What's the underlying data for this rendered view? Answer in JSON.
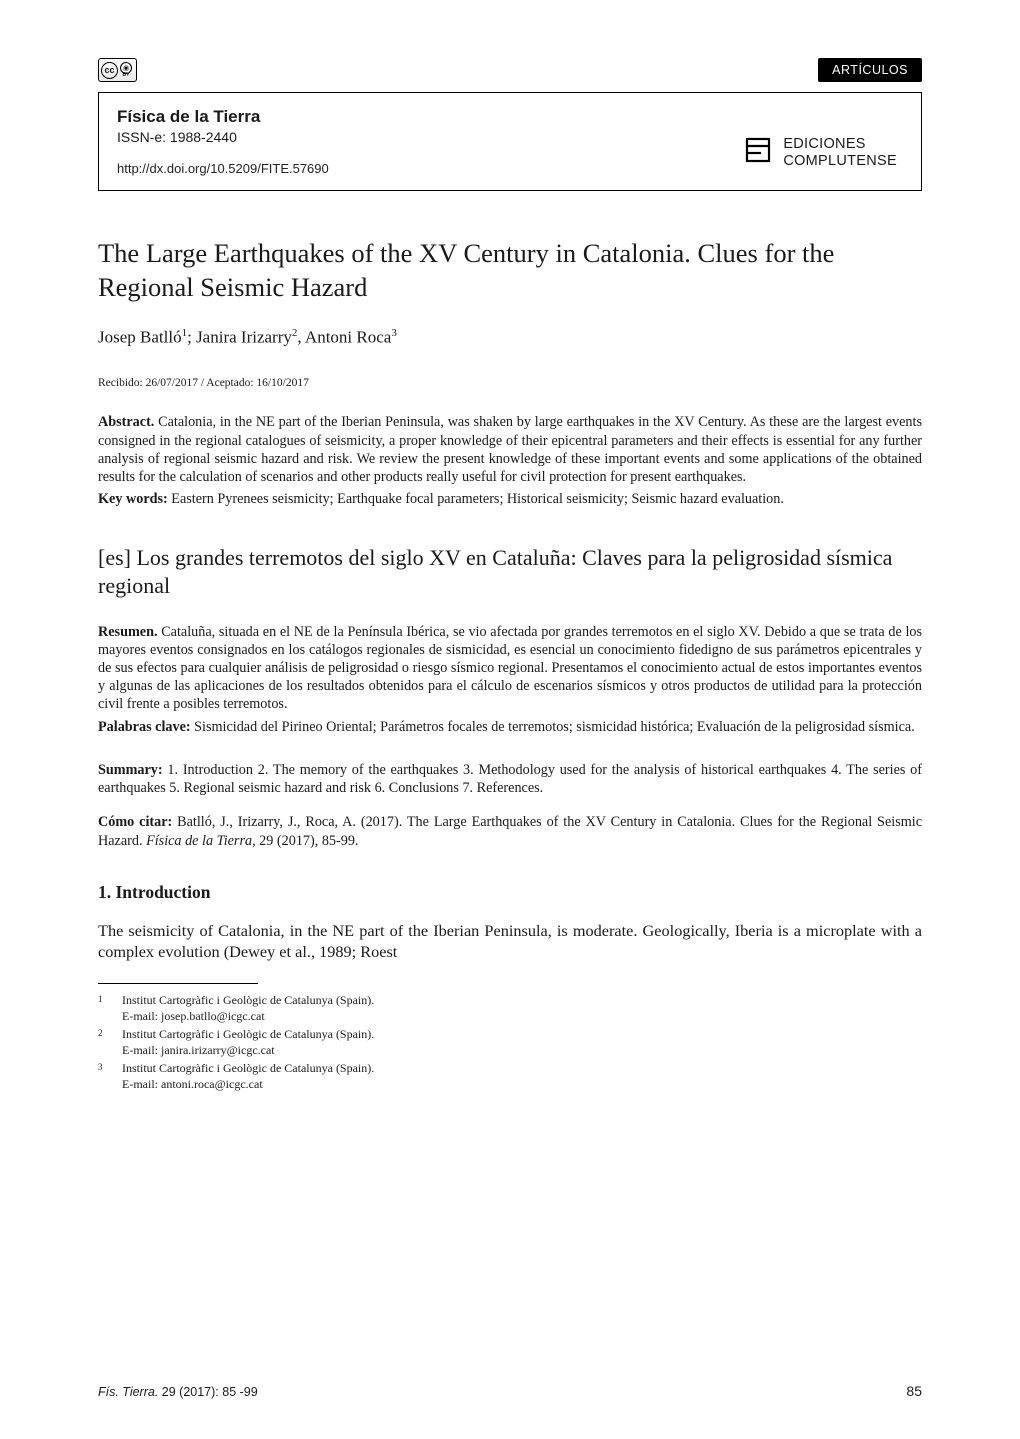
{
  "colors": {
    "text": "#1a1a1a",
    "background": "#ffffff",
    "pill_bg": "#000000",
    "pill_fg": "#ffffff",
    "rule": "#000000"
  },
  "typography": {
    "body_family": "Georgia, 'Times New Roman', serif",
    "sans_family": "Arial, Helvetica, sans-serif",
    "title_size_pt": 20,
    "subtitle_size_pt": 16.5,
    "body_size_pt": 12,
    "abs_size_pt": 10.6,
    "footnote_size_pt": 9
  },
  "top": {
    "cc": "cc",
    "cc_by": "BY",
    "section_label": "ARTÍCULOS"
  },
  "header": {
    "journal": "Física de la Tierra",
    "issn": "ISSN-e: 1988-2440",
    "doi": "http://dx.doi.org/10.5209/FITE.57690",
    "publisher_line1": "EDICIONES",
    "publisher_line2": "COMPLUTENSE"
  },
  "title": "The Large Earthquakes of the XV Century in Catalonia. Clues for the Regional Seismic Hazard",
  "authors_html": "Josep Batlló<sup>1</sup>; Janira Irizarry<sup>2</sup>, Antoni Roca<sup>3</sup>",
  "dates": "Recibido: 26/07/2017 / Aceptado: 16/10/2017",
  "abstract": {
    "lead": "Abstract.",
    "text": " Catalonia, in the NE part of the Iberian Peninsula, was shaken by large earthquakes in the XV Century. As these are the largest events consigned in the regional catalogues of seismicity, a proper knowledge of their epicentral parameters and their effects is essential for any further analysis of regional seismic hazard and risk. We review the present knowledge of these important events and some applications of the obtained results for the calculation of scenarios and other products really useful for civil protection for present earthquakes."
  },
  "keywords": {
    "lead": "Key words:",
    "text": " Eastern Pyrenees seismicity; Earthquake focal parameters; Historical seismicity; Seismic hazard evaluation."
  },
  "es_title": "[es] Los grandes terremotos del siglo XV en Cataluña: Claves para la peligrosidad sísmica regional",
  "resumen": {
    "lead": "Resumen.",
    "text": " Cataluña, situada en el NE de la Península Ibérica, se vio afectada por grandes terremotos en el siglo XV. Debido a que se trata de los mayores eventos consignados en los catálogos regionales de sismicidad, es esencial un conocimiento fidedigno de sus parámetros epicentrales y de sus efectos para cualquier análisis de peligrosidad o riesgo sísmico regional. Presentamos el conocimiento actual de estos importantes eventos y algunas de las aplicaciones de los resultados obtenidos para el cálculo de escenarios sísmicos y otros productos de utilidad para la protección civil frente a posibles terremotos."
  },
  "palabras": {
    "lead": "Palabras clave:",
    "text": " Sismicidad del Pirineo Oriental; Parámetros focales de terremotos; sismicidad histórica; Evaluación de la peligrosidad sísmica."
  },
  "summary": {
    "lead": "Summary:",
    "text": " 1. Introduction 2. The memory of the earthquakes 3. Methodology used for the analysis of historical earthquakes 4. The series of earthquakes 5. Regional seismic hazard and risk 6. Conclusions 7. References."
  },
  "cite": {
    "lead": "Cómo citar:",
    "text_before_em": " Batlló, J., Irizarry, J., Roca, A. (2017). The Large Earthquakes of the XV Century in Catalonia. Clues for the Regional Seismic Hazard. ",
    "em": "Física de la Tierra,",
    "text_after_em": " 29 (2017), 85-99."
  },
  "section1": {
    "heading": "1. Introduction",
    "p1": "The seismicity of Catalonia, in the NE part of the Iberian Peninsula, is moderate. Geologically, Iberia is a microplate with a complex evolution (Dewey et al., 1989; Roest"
  },
  "footnotes": [
    {
      "num": "1",
      "l1": "Institut Cartogràfic i Geològic de Catalunya (Spain).",
      "l2": "E-mail: josep.batllo@icgc.cat"
    },
    {
      "num": "2",
      "l1": "Institut Cartogràfic i Geològic de Catalunya (Spain).",
      "l2": "E-mail: janira.irizarry@icgc.cat"
    },
    {
      "num": "3",
      "l1": "Institut Cartogràfic i Geològic de Catalunya (Spain).",
      "l2": "E-mail: antoni.roca@icgc.cat"
    }
  ],
  "footer": {
    "ref_em": "Fís. Tierra.",
    "ref_rest": " 29 (2017): 85 -99",
    "page": "85"
  }
}
